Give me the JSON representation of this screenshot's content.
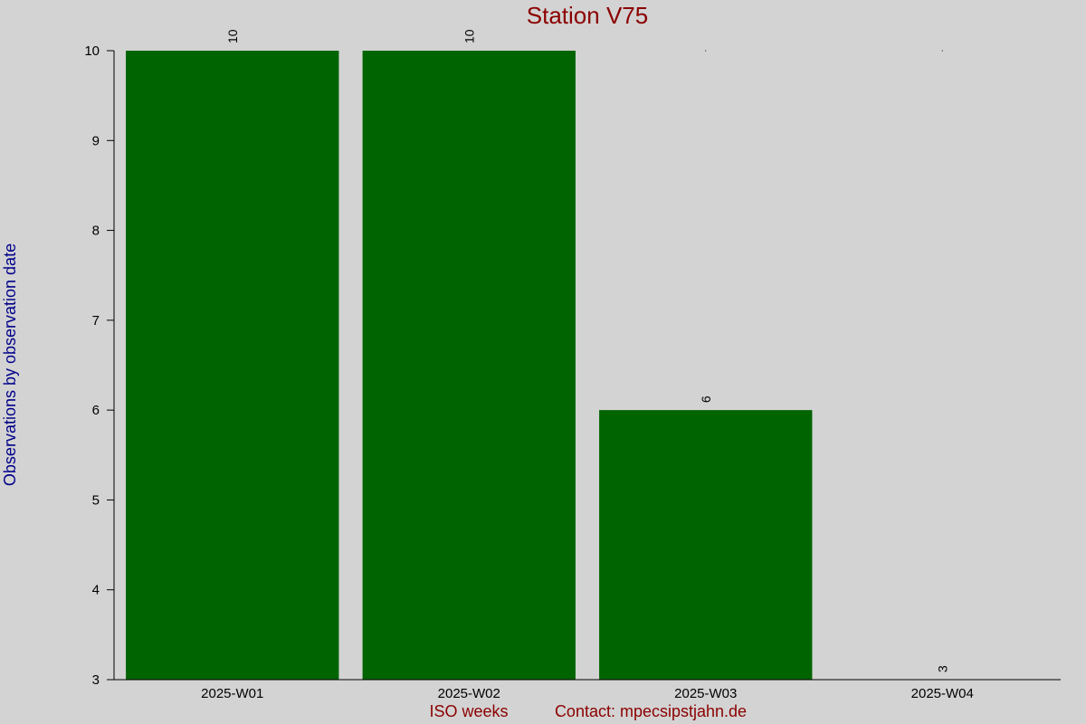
{
  "chart_data": {
    "type": "bar",
    "title": "Station V75",
    "xlabel": "ISO weeks",
    "ylabel": "Observations by observation date",
    "contact": "Contact: mpecsіpstjahn.de",
    "categories": [
      "2025-W01",
      "2025-W02",
      "2025-W03",
      "2025-W04"
    ],
    "values": [
      10,
      10,
      6,
      3
    ],
    "data_labels": [
      "10",
      "10",
      "6",
      "3"
    ],
    "ylim": [
      3,
      10
    ],
    "yticks": [
      "3",
      "4",
      "5",
      "6",
      "7",
      "8",
      "9",
      "10"
    ],
    "grid": false,
    "legend": "none"
  },
  "colors": {
    "background": "#d3d3d3",
    "bar": "#006400",
    "title": "#8b0000",
    "xlabel": "#8b0000",
    "ylabel": "#00008b",
    "axis": "#000000"
  }
}
